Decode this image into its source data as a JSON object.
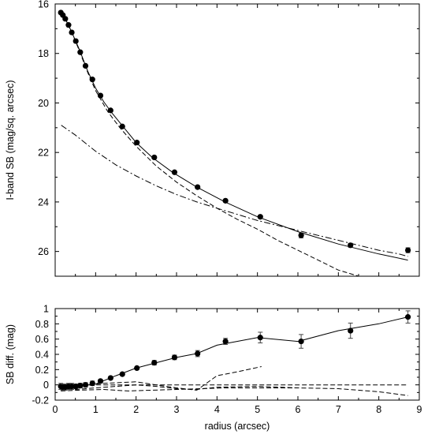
{
  "chart_data": [
    {
      "type": "scatter",
      "panel": "top",
      "xlabel": "",
      "ylabel": "I-band SB (mag/sq. arcsec)",
      "xlim": [
        0,
        9
      ],
      "ylim": [
        27,
        16
      ],
      "y_inverted": true,
      "xticks": [
        "0",
        "1",
        "2",
        "3",
        "4",
        "5",
        "6",
        "7",
        "8",
        "9"
      ],
      "yticks": [
        {
          "v": 16,
          "label": "16"
        },
        {
          "v": 18,
          "label": "18"
        },
        {
          "v": 20,
          "label": "20"
        },
        {
          "v": 22,
          "label": "22"
        },
        {
          "v": 24,
          "label": "24"
        },
        {
          "v": 26,
          "label": "26"
        }
      ],
      "points": [
        {
          "x": 0.14,
          "y": 16.35,
          "err": 0.05
        },
        {
          "x": 0.19,
          "y": 16.45,
          "err": 0.05
        },
        {
          "x": 0.25,
          "y": 16.6,
          "err": 0.05
        },
        {
          "x": 0.33,
          "y": 16.85,
          "err": 0.05
        },
        {
          "x": 0.41,
          "y": 17.15,
          "err": 0.05
        },
        {
          "x": 0.51,
          "y": 17.5,
          "err": 0.05
        },
        {
          "x": 0.62,
          "y": 17.95,
          "err": 0.05
        },
        {
          "x": 0.75,
          "y": 18.5,
          "err": 0.05
        },
        {
          "x": 0.92,
          "y": 19.05,
          "err": 0.05
        },
        {
          "x": 1.12,
          "y": 19.7,
          "err": 0.05
        },
        {
          "x": 1.37,
          "y": 20.3,
          "err": 0.05
        },
        {
          "x": 1.66,
          "y": 20.95,
          "err": 0.05
        },
        {
          "x": 2.02,
          "y": 21.6,
          "err": 0.05
        },
        {
          "x": 2.45,
          "y": 22.2,
          "err": 0.05
        },
        {
          "x": 2.95,
          "y": 22.8,
          "err": 0.05
        },
        {
          "x": 3.52,
          "y": 23.4,
          "err": 0.05
        },
        {
          "x": 4.21,
          "y": 23.95,
          "err": 0.05
        },
        {
          "x": 5.07,
          "y": 24.6,
          "err": 0.05
        },
        {
          "x": 6.08,
          "y": 25.35,
          "err": 0.1
        },
        {
          "x": 7.3,
          "y": 25.75,
          "err": 0.08
        },
        {
          "x": 8.72,
          "y": 25.95,
          "err": 0.1
        }
      ],
      "series": [
        {
          "style": "solid",
          "x": [
            0.14,
            0.25,
            0.4,
            0.6,
            0.8,
            1.0,
            1.2,
            1.4,
            1.7,
            2.0,
            2.4,
            2.9,
            3.5,
            4.2,
            5.0,
            6.0,
            7.0,
            8.0,
            8.72
          ],
          "y": [
            16.35,
            16.6,
            17.1,
            17.85,
            18.7,
            19.4,
            19.95,
            20.4,
            21.0,
            21.6,
            22.2,
            22.8,
            23.4,
            24.0,
            24.6,
            25.2,
            25.7,
            26.1,
            26.35
          ]
        },
        {
          "style": "dashed",
          "x": [
            0.14,
            0.25,
            0.4,
            0.6,
            0.8,
            1.0,
            1.3,
            1.6,
            2.0,
            2.5,
            3.0,
            3.5,
            4.0,
            4.5,
            5.0,
            5.5,
            6.0,
            6.5,
            7.0,
            7.5
          ],
          "y": [
            16.35,
            16.6,
            17.1,
            17.9,
            18.75,
            19.5,
            20.35,
            21.0,
            21.75,
            22.55,
            23.2,
            23.75,
            24.25,
            24.7,
            25.1,
            25.55,
            25.95,
            26.35,
            26.75,
            27.0
          ]
        },
        {
          "style": "dashdot",
          "x": [
            0.15,
            0.5,
            1.0,
            1.5,
            2.0,
            2.5,
            3.0,
            3.5,
            4.0,
            4.5,
            5.0,
            5.5,
            6.0,
            6.5,
            7.0,
            7.5,
            8.0,
            8.5,
            8.72
          ],
          "y": [
            20.9,
            21.3,
            21.95,
            22.5,
            22.95,
            23.35,
            23.7,
            24.0,
            24.25,
            24.5,
            24.75,
            24.95,
            25.15,
            25.35,
            25.55,
            25.75,
            25.95,
            26.1,
            26.2
          ]
        }
      ]
    },
    {
      "type": "scatter",
      "panel": "bottom",
      "xlabel": "radius (arcsec)",
      "ylabel": "SB diff. (mag)",
      "xlim": [
        0,
        9
      ],
      "ylim": [
        -0.2,
        1.0
      ],
      "xticks": [
        "0",
        "1",
        "2",
        "3",
        "4",
        "5",
        "6",
        "7",
        "8",
        "9"
      ],
      "yticks": [
        {
          "v": -0.2,
          "label": "-0.2"
        },
        {
          "v": 0,
          "label": "0"
        },
        {
          "v": 0.2,
          "label": "0.2"
        },
        {
          "v": 0.4,
          "label": "0.4"
        },
        {
          "v": 0.6,
          "label": "0.6"
        },
        {
          "v": 0.8,
          "label": "0.8"
        },
        {
          "v": 1.0,
          "label": "1"
        }
      ],
      "points": [
        {
          "x": 0.14,
          "y": -0.02,
          "err": 0.04
        },
        {
          "x": 0.19,
          "y": -0.03,
          "err": 0.04
        },
        {
          "x": 0.25,
          "y": -0.03,
          "err": 0.04
        },
        {
          "x": 0.33,
          "y": -0.02,
          "err": 0.04
        },
        {
          "x": 0.41,
          "y": -0.02,
          "err": 0.04
        },
        {
          "x": 0.51,
          "y": -0.02,
          "err": 0.03
        },
        {
          "x": 0.62,
          "y": -0.01,
          "err": 0.03
        },
        {
          "x": 0.75,
          "y": 0.0,
          "err": 0.03
        },
        {
          "x": 0.92,
          "y": 0.02,
          "err": 0.03
        },
        {
          "x": 1.12,
          "y": 0.05,
          "err": 0.02
        },
        {
          "x": 1.37,
          "y": 0.09,
          "err": 0.02
        },
        {
          "x": 1.66,
          "y": 0.14,
          "err": 0.02
        },
        {
          "x": 2.02,
          "y": 0.22,
          "err": 0.02
        },
        {
          "x": 2.45,
          "y": 0.29,
          "err": 0.03
        },
        {
          "x": 2.95,
          "y": 0.36,
          "err": 0.03
        },
        {
          "x": 3.52,
          "y": 0.41,
          "err": 0.04
        },
        {
          "x": 4.21,
          "y": 0.57,
          "err": 0.04
        },
        {
          "x": 5.07,
          "y": 0.62,
          "err": 0.07
        },
        {
          "x": 6.08,
          "y": 0.57,
          "err": 0.09
        },
        {
          "x": 7.3,
          "y": 0.71,
          "err": 0.1
        },
        {
          "x": 8.72,
          "y": 0.89,
          "err": 0.08
        }
      ],
      "series": [
        {
          "style": "solid",
          "x": [
            0.14,
            0.5,
            1.0,
            1.5,
            2.0,
            2.5,
            3.0,
            3.5,
            4.0,
            5.0,
            6.0,
            7.0,
            8.0,
            8.72
          ],
          "y": [
            -0.02,
            -0.02,
            0.01,
            0.12,
            0.22,
            0.29,
            0.36,
            0.41,
            0.52,
            0.62,
            0.57,
            0.71,
            0.8,
            0.89
          ]
        },
        {
          "style": "dashed",
          "x": [
            0.14,
            1.0,
            2.0,
            3.0,
            4.0,
            5.0,
            6.0,
            7.0,
            8.0,
            8.72
          ],
          "y": [
            0.0,
            0.0,
            0.0,
            0.0,
            0.0,
            0.0,
            0.0,
            0.0,
            0.0,
            0.0
          ]
        },
        {
          "style": "dashed",
          "x": [
            0.14,
            0.4,
            0.8,
            1.2,
            1.6,
            2.0,
            2.5,
            3.0,
            3.5,
            4.0,
            4.5,
            5.1
          ],
          "y": [
            -0.06,
            -0.03,
            0.0,
            0.02,
            0.03,
            0.04,
            0.0,
            -0.04,
            -0.07,
            0.12,
            0.17,
            0.24
          ]
        },
        {
          "style": "dashed",
          "x": [
            0.14,
            0.5,
            1.0,
            1.5,
            2.0,
            2.5,
            3.0,
            3.5,
            4.0,
            5.0,
            6.0,
            7.0,
            8.0,
            8.72
          ],
          "y": [
            -0.05,
            -0.06,
            -0.04,
            -0.02,
            0.0,
            -0.02,
            -0.05,
            -0.06,
            -0.03,
            -0.02,
            -0.04,
            -0.05,
            -0.09,
            -0.14
          ]
        },
        {
          "style": "dashed",
          "x": [
            0.14,
            0.6,
            1.2,
            1.8,
            2.4,
            3.0,
            3.6,
            4.2,
            5.0,
            6.0
          ],
          "y": [
            -0.08,
            -0.07,
            -0.06,
            -0.08,
            -0.07,
            -0.06,
            -0.05,
            -0.04,
            -0.04,
            -0.04
          ]
        }
      ]
    }
  ]
}
